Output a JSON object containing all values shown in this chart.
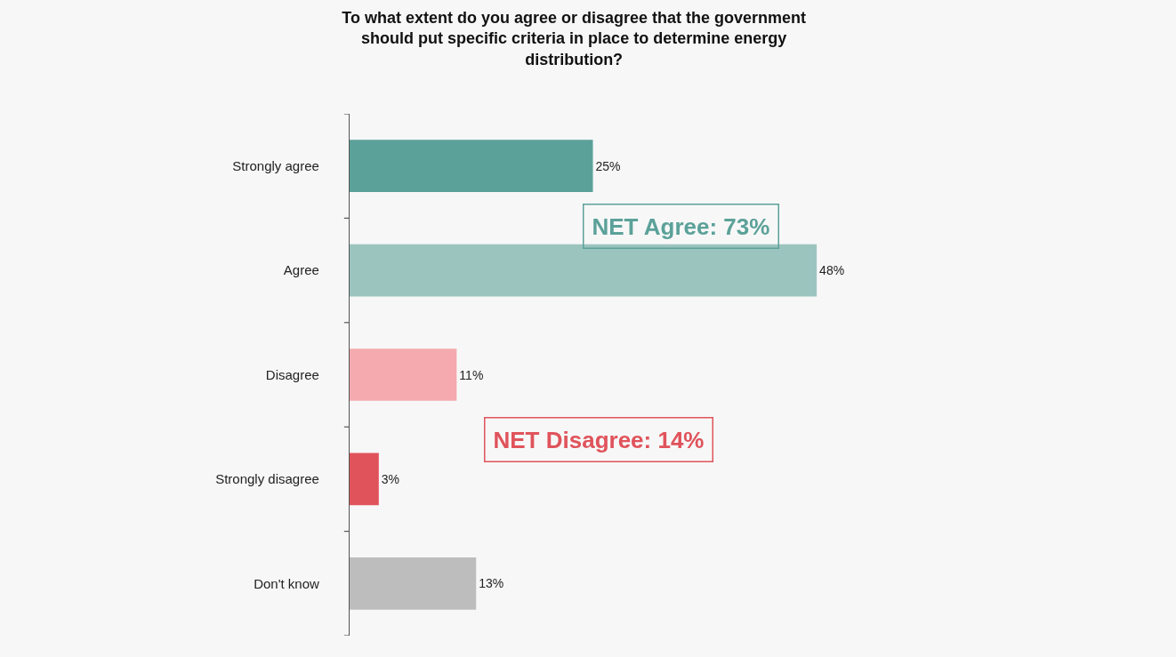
{
  "chart_data": {
    "type": "bar",
    "orientation": "horizontal",
    "title": "To what extent do you agree or disagree that the government should put specific criteria in place to determine energy distribution?",
    "categories": [
      "Strongly agree",
      "Agree",
      "Disagree",
      "Strongly disagree",
      "Don't know"
    ],
    "values": [
      25,
      48,
      11,
      3,
      13
    ],
    "colors": [
      "#5ba199",
      "#9bc4bf",
      "#f4aaae",
      "#e0535b",
      "#bdbdbd"
    ],
    "value_labels": [
      "25%",
      "48%",
      "11%",
      "3%",
      "13%"
    ],
    "tick_labels": "y",
    "annotations": [
      "NET Agree: 73%",
      "NET Disagree: 14%"
    ]
  }
}
